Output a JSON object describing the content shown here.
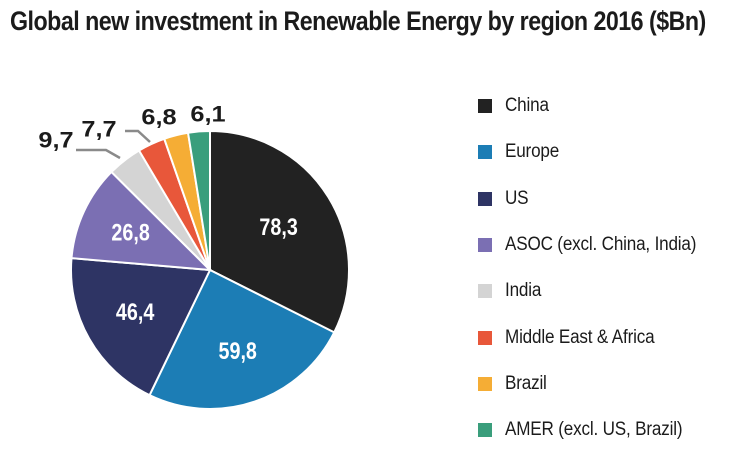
{
  "chart_data": {
    "type": "pie",
    "title": "Global new investment in Renewable Energy by region 2016 ($Bn)",
    "slices": [
      {
        "name": "China",
        "value": 78.3,
        "label": "78,3",
        "color": "#222222"
      },
      {
        "name": "Europe",
        "value": 59.8,
        "label": "59,8",
        "color": "#1c7db5"
      },
      {
        "name": "US",
        "value": 46.4,
        "label": "46,4",
        "color": "#2e3464"
      },
      {
        "name": "ASOC (excl. China, India)",
        "value": 26.8,
        "label": "26,8",
        "color": "#7b6fb3"
      },
      {
        "name": "India",
        "value": 9.7,
        "label": "9,7",
        "color": "#d4d4d4"
      },
      {
        "name": "Middle East & Africa",
        "value": 7.7,
        "label": "7,7",
        "color": "#e8573a"
      },
      {
        "name": "Brazil",
        "value": 6.8,
        "label": "6,8",
        "color": "#f5ad35"
      },
      {
        "name": "AMER (excl. US, Brazil)",
        "value": 6.1,
        "label": "6,1",
        "color": "#3a9e7c"
      }
    ],
    "legend_position": "right"
  }
}
